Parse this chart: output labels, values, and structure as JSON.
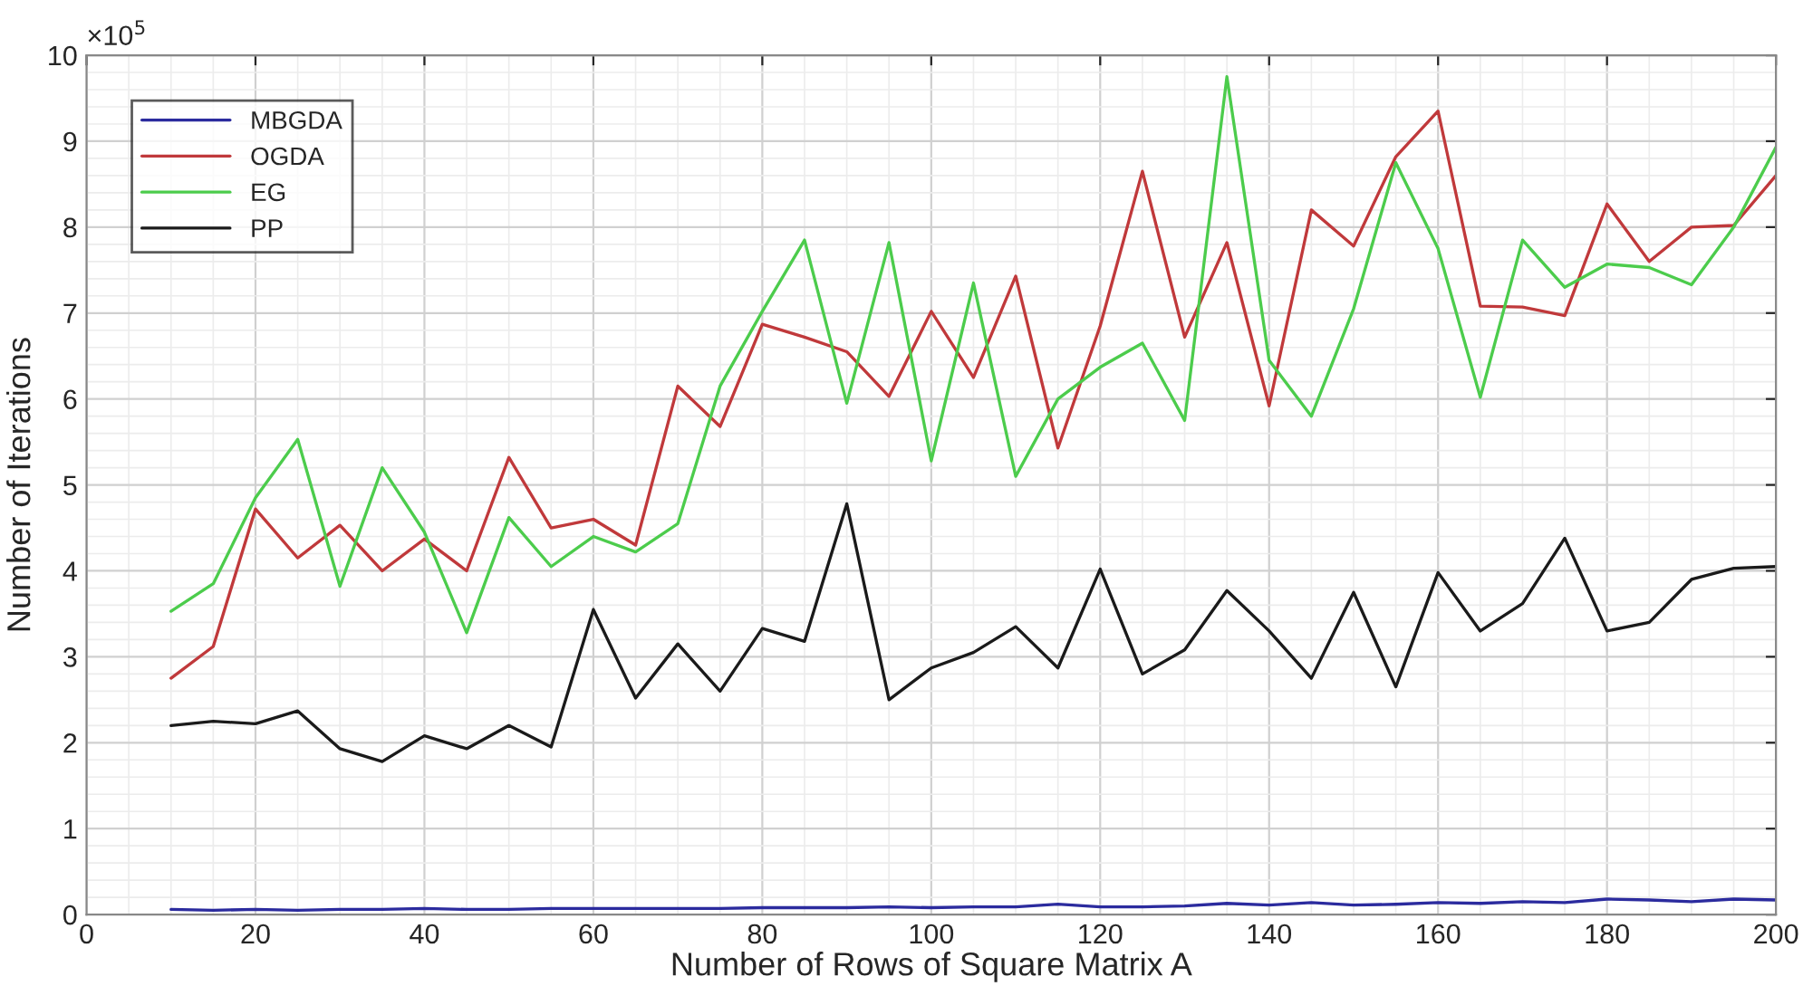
{
  "chart_data": {
    "type": "line",
    "xlabel": "Number of Rows of Square Matrix A",
    "ylabel": "Number of Iterations",
    "annotations": [
      "×10$^{5}$"
    ],
    "x": [
      10,
      15,
      20,
      25,
      30,
      35,
      40,
      45,
      50,
      55,
      60,
      65,
      70,
      75,
      80,
      85,
      90,
      95,
      100,
      105,
      110,
      115,
      120,
      125,
      130,
      135,
      140,
      145,
      150,
      155,
      160,
      165,
      170,
      175,
      180,
      185,
      190,
      195,
      200
    ],
    "series": [
      {
        "name": "MBGDA",
        "color": "#2b2b9e",
        "values": [
          0.06,
          0.05,
          0.06,
          0.05,
          0.06,
          0.06,
          0.07,
          0.06,
          0.06,
          0.07,
          0.07,
          0.07,
          0.07,
          0.07,
          0.08,
          0.08,
          0.08,
          0.09,
          0.08,
          0.09,
          0.09,
          0.12,
          0.09,
          0.09,
          0.1,
          0.13,
          0.11,
          0.14,
          0.11,
          0.12,
          0.14,
          0.13,
          0.15,
          0.14,
          0.18,
          0.17,
          0.15,
          0.18,
          0.17
        ]
      },
      {
        "name": "OGDA",
        "color": "#c0393b",
        "values": [
          2.75,
          3.12,
          4.72,
          4.15,
          4.53,
          4.0,
          4.37,
          4.0,
          5.32,
          4.5,
          4.6,
          4.3,
          6.15,
          5.68,
          6.87,
          6.72,
          6.55,
          6.03,
          7.02,
          6.25,
          7.43,
          5.43,
          6.85,
          8.65,
          6.72,
          7.82,
          5.92,
          8.2,
          7.78,
          8.82,
          9.35,
          7.08,
          7.07,
          6.97,
          8.27,
          7.6,
          8.0,
          8.02,
          8.6
        ]
      },
      {
        "name": "EG",
        "color": "#4ccc4c",
        "values": [
          3.53,
          3.85,
          4.85,
          5.53,
          3.82,
          5.2,
          4.45,
          3.28,
          4.62,
          4.05,
          4.4,
          4.22,
          4.55,
          6.15,
          7.02,
          7.85,
          5.95,
          7.82,
          5.28,
          7.35,
          5.1,
          6.0,
          6.37,
          6.65,
          5.75,
          9.75,
          6.45,
          5.8,
          7.05,
          8.75,
          7.75,
          6.02,
          7.85,
          7.3,
          7.57,
          7.53,
          7.33,
          8.0,
          8.93
        ]
      },
      {
        "name": "PP",
        "color": "#1a1a1a",
        "values": [
          2.2,
          2.25,
          2.22,
          2.37,
          1.93,
          1.78,
          2.08,
          1.93,
          2.2,
          1.95,
          3.55,
          2.52,
          3.15,
          2.6,
          3.33,
          3.18,
          4.78,
          2.5,
          2.87,
          3.05,
          3.35,
          2.87,
          4.02,
          2.8,
          3.08,
          3.77,
          3.3,
          2.75,
          3.75,
          2.65,
          3.98,
          3.3,
          3.62,
          4.38,
          3.3,
          3.4,
          3.9,
          4.03,
          4.05
        ]
      }
    ],
    "xlim": [
      0,
      200
    ],
    "xticks": [
      0,
      20,
      40,
      60,
      80,
      100,
      120,
      140,
      160,
      180,
      200
    ],
    "ylim": [
      0,
      10
    ],
    "yticks": [
      0,
      1,
      2,
      3,
      4,
      5,
      6,
      7,
      8,
      9,
      10
    ],
    "grid": true,
    "legend": "top left",
    "marker": "none",
    "line_style": "solid"
  }
}
